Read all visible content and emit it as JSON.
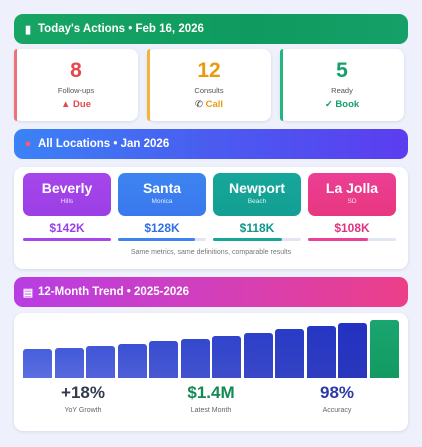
{
  "actions": {
    "title": "Today's Actions • Feb 16, 2026",
    "icon": "clipboard-icon",
    "cards": [
      {
        "value": "8",
        "label": "Follow-ups",
        "action": "Due",
        "action_icon": "warning-icon",
        "glyph": "▲",
        "color": "#e5484d",
        "bar": "#ee7178"
      },
      {
        "value": "12",
        "label": "Consults",
        "action": "Call",
        "action_icon": "phone-icon",
        "glyph": "📞",
        "color": "#e99a10",
        "bar": "#f3b43a"
      },
      {
        "value": "5",
        "label": "Ready",
        "action": "Book",
        "action_icon": "check-icon",
        "glyph": "✓",
        "color": "#13a06a",
        "bar": "#22b57c"
      }
    ]
  },
  "locations": {
    "title": "All Locations • Jan 2026",
    "icon": "pin-icon",
    "items": [
      {
        "name": "Beverly",
        "sub": "Hills",
        "value": "$142K",
        "share": 1.0,
        "color": "#a646ea",
        "grad": "#9b3fe6",
        "valcolor": "#9b3fe6"
      },
      {
        "name": "Santa",
        "sub": "Monica",
        "value": "$128K",
        "share": 0.87,
        "color": "#3d84f0",
        "grad": "#3a78ee",
        "valcolor": "#2f6fe8"
      },
      {
        "name": "Newport",
        "sub": "Beach",
        "value": "$118K",
        "share": 0.78,
        "color": "#16a79a",
        "grad": "#139f93",
        "valcolor": "#11968b"
      },
      {
        "name": "La Jolla",
        "sub": "SD",
        "value": "$108K",
        "share": 0.68,
        "color": "#ec3f95",
        "grad": "#e8377f",
        "valcolor": "#e0337d"
      }
    ],
    "note": "Same metrics, same definitions, comparable results"
  },
  "trend": {
    "title": "12-Month Trend • 2025-2026",
    "icon": "chart-icon",
    "bars": [
      0.5,
      0.52,
      0.55,
      0.58,
      0.64,
      0.67,
      0.72,
      0.77,
      0.84,
      0.89,
      0.94,
      1.0
    ],
    "highlight_last": true,
    "stats": [
      {
        "value": "+18%",
        "label": "YoY Growth",
        "color": "#333a4d"
      },
      {
        "value": "$1.4M",
        "label": "Latest Month",
        "color": "#138a55"
      },
      {
        "value": "98%",
        "label": "Accuracy",
        "color": "#2b3aa6"
      }
    ]
  }
}
